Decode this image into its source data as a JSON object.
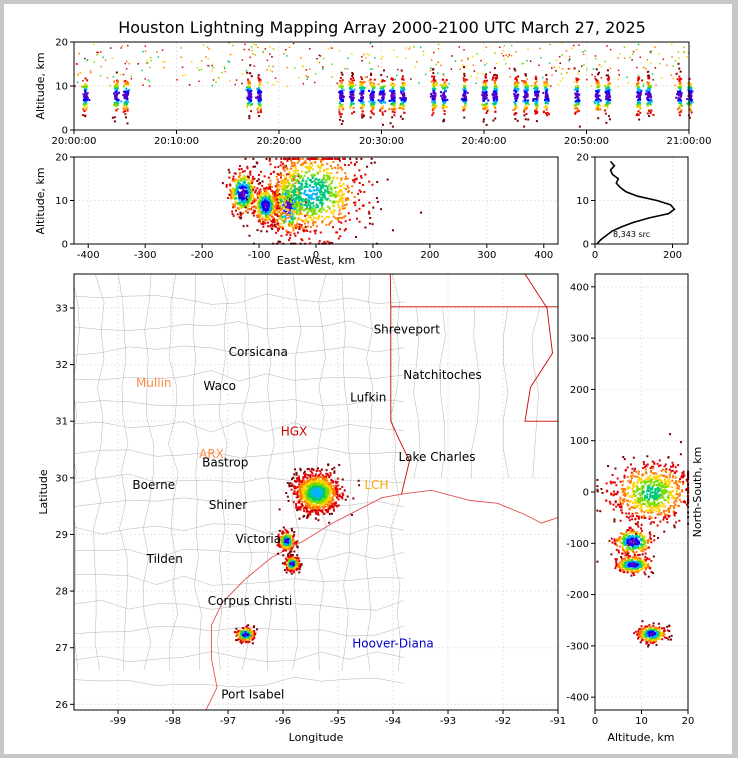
{
  "title": "Houston Lightning Mapping Array 2000-2100 UTC March 27, 2025",
  "colors": {
    "frame": "#c8c8c8",
    "axis": "#000000",
    "grid": "#e6e6e6",
    "county": "#b4b4b4",
    "coast": "#e05050",
    "state": "#cc0000",
    "sources": [
      "#5000c8",
      "#0000ff",
      "#00b4ff",
      "#00c878",
      "#78dc00",
      "#ffd200",
      "#ff7800",
      "#e00000",
      "#780000"
    ]
  },
  "chart_data": [
    {
      "id": "time_altitude",
      "type": "scatter",
      "xlabel": "",
      "ylabel": "Altitude, km",
      "xlim": [
        "20:00:00",
        "21:00:00"
      ],
      "ylim": [
        0,
        20
      ],
      "xticks": [
        "20:00:00",
        "20:10:00",
        "20:20:00",
        "20:30:00",
        "20:40:00",
        "20:50:00",
        "21:00:00"
      ],
      "yticks": [
        0,
        10,
        20
      ],
      "flash_minutes": [
        1,
        4,
        5,
        17,
        18,
        26,
        27,
        28,
        29,
        30,
        31,
        32,
        35,
        36,
        38,
        40,
        41,
        43,
        44,
        45,
        46,
        49,
        51,
        52,
        55,
        56,
        59,
        60
      ]
    },
    {
      "id": "ew_altitude",
      "type": "scatter",
      "xlabel": "East-West, km",
      "ylabel": "Altitude, km",
      "xlim": [
        -425,
        425
      ],
      "ylim": [
        0,
        20
      ],
      "xticks": [
        -400,
        -300,
        -200,
        -100,
        0,
        100,
        200,
        300,
        400
      ],
      "yticks": [
        0,
        10,
        20
      ],
      "clusters": [
        {
          "x": -130,
          "z": 12,
          "sx": 12,
          "sz": 2.5
        },
        {
          "x": -50,
          "z": 9,
          "sx": 13,
          "sz": 3.5
        },
        {
          "x": -10,
          "z": 12,
          "sx": 45,
          "sz": 5
        },
        {
          "x": -90,
          "z": 9,
          "sx": 10,
          "sz": 2
        }
      ]
    },
    {
      "id": "altitude_histogram",
      "type": "line",
      "xlabel": "",
      "ylabel": "",
      "xlim": [
        0,
        240
      ],
      "ylim": [
        0,
        20
      ],
      "xticks": [
        0,
        200
      ],
      "yticks": [
        0,
        10,
        20
      ],
      "annotation": "8,343 src",
      "x": [
        5,
        15,
        30,
        45,
        70,
        100,
        140,
        190,
        205,
        195,
        160,
        110,
        80,
        65,
        55,
        60,
        45,
        40,
        50,
        40
      ],
      "y": [
        0,
        1,
        2,
        3,
        4,
        5,
        6,
        7,
        8,
        9,
        10,
        11,
        12,
        13,
        14,
        15,
        16,
        17,
        18,
        19
      ]
    },
    {
      "id": "plan_view",
      "type": "scatter",
      "xlabel": "Longitude",
      "ylabel": "Latitude",
      "xlim": [
        -99.8,
        -91.0
      ],
      "ylim": [
        25.9,
        33.6
      ],
      "xticks": [
        -99,
        -98,
        -97,
        -96,
        -95,
        -94,
        -93,
        -92,
        -91
      ],
      "yticks": [
        26,
        27,
        28,
        29,
        30,
        31,
        32,
        33
      ],
      "clusters": [
        {
          "lon": -95.4,
          "lat": 29.75,
          "slon": 0.2,
          "slat": 0.17
        },
        {
          "lon": -95.95,
          "lat": 28.9,
          "slon": 0.07,
          "slat": 0.08
        },
        {
          "lon": -95.85,
          "lat": 28.5,
          "slon": 0.06,
          "slat": 0.06
        },
        {
          "lon": -96.7,
          "lat": 27.25,
          "slon": 0.08,
          "slat": 0.06
        }
      ],
      "cities": [
        {
          "name": "Shreveport",
          "lon": -93.75,
          "lat": 32.55,
          "color": "#000000"
        },
        {
          "name": "Corsicana",
          "lon": -96.45,
          "lat": 32.15,
          "color": "#000000"
        },
        {
          "name": "Mullin",
          "lon": -98.35,
          "lat": 31.6,
          "color": "#ff8c46"
        },
        {
          "name": "Waco",
          "lon": -97.15,
          "lat": 31.55,
          "color": "#000000"
        },
        {
          "name": "Natchitoches",
          "lon": -93.1,
          "lat": 31.75,
          "color": "#000000"
        },
        {
          "name": "Lufkin",
          "lon": -94.45,
          "lat": 31.35,
          "color": "#000000"
        },
        {
          "name": "HGX",
          "lon": -95.8,
          "lat": 30.75,
          "color": "#cc0000"
        },
        {
          "name": "ARX",
          "lon": -97.3,
          "lat": 30.35,
          "color": "#ff8c46"
        },
        {
          "name": "Bastrop",
          "lon": -97.05,
          "lat": 30.2,
          "color": "#000000"
        },
        {
          "name": "Lake Charles",
          "lon": -93.2,
          "lat": 30.3,
          "color": "#000000"
        },
        {
          "name": "Boerne",
          "lon": -98.35,
          "lat": 29.8,
          "color": "#000000"
        },
        {
          "name": "LCH",
          "lon": -94.3,
          "lat": 29.8,
          "color": "#ffaa00"
        },
        {
          "name": "Shiner",
          "lon": -97.0,
          "lat": 29.45,
          "color": "#000000"
        },
        {
          "name": "Victoria",
          "lon": -96.45,
          "lat": 28.85,
          "color": "#000000"
        },
        {
          "name": "Tilden",
          "lon": -98.15,
          "lat": 28.5,
          "color": "#000000"
        },
        {
          "name": "Corpus Christi",
          "lon": -96.6,
          "lat": 27.75,
          "color": "#000000"
        },
        {
          "name": "Hoover-Diana",
          "lon": -94.0,
          "lat": 27.0,
          "color": "#0000cc"
        },
        {
          "name": "Port Isabel",
          "lon": -96.55,
          "lat": 26.1,
          "color": "#000000"
        }
      ]
    },
    {
      "id": "altitude_ns",
      "type": "scatter",
      "xlabel": "Altitude, km",
      "ylabel": "North-South, km",
      "xlim": [
        0,
        20
      ],
      "ylim": [
        -425,
        425
      ],
      "xticks": [
        0,
        10,
        20
      ],
      "yticks": [
        -400,
        -300,
        -200,
        -100,
        0,
        100,
        200,
        300,
        400
      ],
      "clusters": [
        {
          "z": 8,
          "y": -95,
          "sz": 2,
          "sy": 12
        },
        {
          "z": 8,
          "y": -140,
          "sz": 1.8,
          "sy": 8
        },
        {
          "z": 12,
          "y": -275,
          "sz": 1.5,
          "sy": 8
        },
        {
          "z": 12,
          "y": 0,
          "sz": 4.5,
          "sy": 30
        }
      ]
    }
  ]
}
